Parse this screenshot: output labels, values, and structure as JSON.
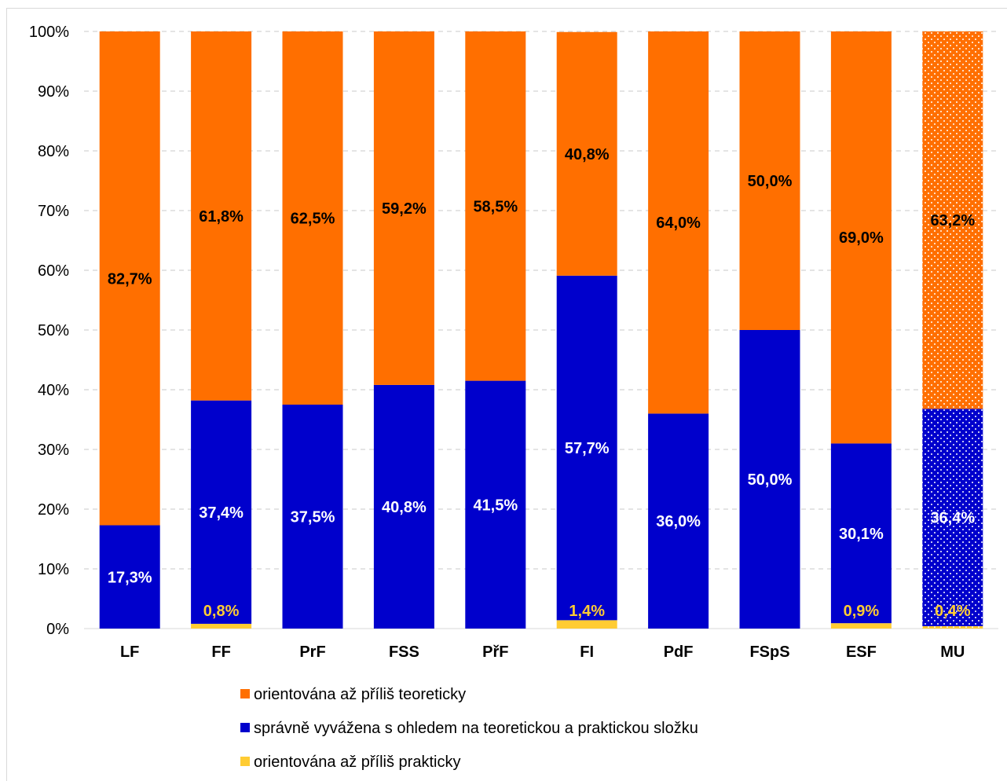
{
  "chart_data": {
    "type": "bar",
    "stacked": true,
    "categories": [
      "LF",
      "FF",
      "PrF",
      "FSS",
      "PřF",
      "FI",
      "PdF",
      "FSpS",
      "ESF",
      "MU"
    ],
    "series": [
      {
        "name": "orientována až příliš prakticky",
        "color": "#ffcc33",
        "label_color": "#ffcc33",
        "values": [
          0,
          0.8,
          0,
          0,
          0,
          1.4,
          0,
          0,
          0.9,
          0.4
        ],
        "labels": [
          "",
          "0,8%",
          "",
          "",
          "",
          "1,4%",
          "",
          "",
          "0,9%",
          "0,4%"
        ]
      },
      {
        "name": "správně vyvážena s ohledem na teoretickou a praktickou složku",
        "color": "#0000cc",
        "label_color": "#ffffff",
        "values": [
          17.3,
          37.4,
          37.5,
          40.8,
          41.5,
          57.7,
          36.0,
          50.0,
          30.1,
          36.4
        ],
        "labels": [
          "17,3%",
          "37,4%",
          "37,5%",
          "40,8%",
          "41,5%",
          "57,7%",
          "36,0%",
          "50,0%",
          "30,1%",
          "36,4%"
        ]
      },
      {
        "name": "orientována až příliš teoreticky",
        "color": "#ff6f00",
        "label_color": "#000000",
        "values": [
          82.7,
          61.8,
          62.5,
          59.2,
          58.5,
          40.8,
          64.0,
          50.0,
          69.0,
          63.2
        ],
        "labels": [
          "82,7%",
          "61,8%",
          "62,5%",
          "59,2%",
          "58,5%",
          "40,8%",
          "64,0%",
          "50,0%",
          "69,0%",
          "63,2%"
        ]
      }
    ],
    "dotted_pattern_category": "MU",
    "ylim": [
      0,
      100
    ],
    "yticks": [
      "0%",
      "10%",
      "20%",
      "30%",
      "40%",
      "50%",
      "60%",
      "70%",
      "80%",
      "90%",
      "100%"
    ],
    "grid": "horizontal dashed",
    "legend_position": "bottom",
    "legend_order": [
      "orientována až příliš teoreticky",
      "správně vyvážena s ohledem na teoretickou a praktickou složku",
      "orientována až příliš prakticky"
    ]
  }
}
